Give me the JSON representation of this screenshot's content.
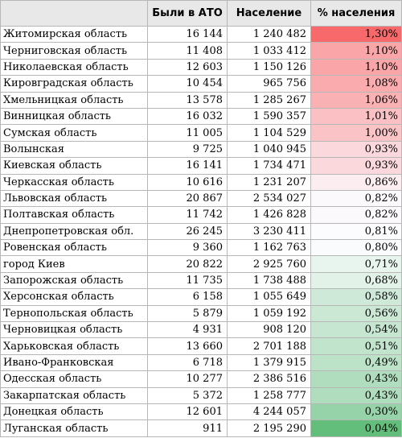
{
  "table": {
    "headers": [
      "",
      "Были в АТО",
      "Население",
      "% населения"
    ],
    "rows": [
      {
        "region": "Житомирская область",
        "ato": "16 144",
        "population": "1 240 482",
        "percent": "1,30%",
        "percent_value": 1.3
      },
      {
        "region": "Черниговская область",
        "ato": "11 408",
        "population": "1 033 412",
        "percent": "1,10%",
        "percent_value": 1.1
      },
      {
        "region": "Николаевская область",
        "ato": "12 603",
        "population": "1 150 126",
        "percent": "1,10%",
        "percent_value": 1.1
      },
      {
        "region": "Кировградская область",
        "ato": "10 454",
        "population": "965 756",
        "percent": "1,08%",
        "percent_value": 1.08
      },
      {
        "region": "Хмельницкая область",
        "ato": "13 578",
        "population": "1 285 267",
        "percent": "1,06%",
        "percent_value": 1.06
      },
      {
        "region": "Винницкая область",
        "ato": "16 032",
        "population": "1 590 357",
        "percent": "1,01%",
        "percent_value": 1.01
      },
      {
        "region": "Сумская область",
        "ato": "11 005",
        "population": "1 104 529",
        "percent": "1,00%",
        "percent_value": 1.0
      },
      {
        "region": "Волынская",
        "ato": "9 725",
        "population": "1 040 945",
        "percent": "0,93%",
        "percent_value": 0.93
      },
      {
        "region": "Киевская область",
        "ato": "16 141",
        "population": "1 734 471",
        "percent": "0,93%",
        "percent_value": 0.93
      },
      {
        "region": "Черкасская область",
        "ato": "10 616",
        "population": "1 231 207",
        "percent": "0,86%",
        "percent_value": 0.86
      },
      {
        "region": "Львовская область",
        "ato": "20 867",
        "population": "2 534 027",
        "percent": "0,82%",
        "percent_value": 0.82
      },
      {
        "region": "Полтавская область",
        "ato": "11 742",
        "population": "1 426 828",
        "percent": "0,82%",
        "percent_value": 0.82
      },
      {
        "region": "Днепропетровская обл.",
        "ato": "26 245",
        "population": "3 230 411",
        "percent": "0,81%",
        "percent_value": 0.81
      },
      {
        "region": "Ровенская область",
        "ato": "9 360",
        "population": "1 162 763",
        "percent": "0,80%",
        "percent_value": 0.8
      },
      {
        "region": "город Киев",
        "ato": "20 822",
        "population": "2 925 760",
        "percent": "0,71%",
        "percent_value": 0.71
      },
      {
        "region": "Запорожская область",
        "ato": "11 735",
        "population": "1 738 488",
        "percent": "0,68%",
        "percent_value": 0.68
      },
      {
        "region": "Херсонская область",
        "ato": "6 158",
        "population": "1 055 649",
        "percent": "0,58%",
        "percent_value": 0.58
      },
      {
        "region": "Тернопольская область",
        "ato": "5 879",
        "population": "1 059 192",
        "percent": "0,56%",
        "percent_value": 0.56
      },
      {
        "region": "Черновицкая область",
        "ato": "4 931",
        "population": "908 120",
        "percent": "0,54%",
        "percent_value": 0.54
      },
      {
        "region": "Харьковская область",
        "ato": "13 660",
        "population": "2 701 188",
        "percent": "0,51%",
        "percent_value": 0.51
      },
      {
        "region": "Ивано-Франковская",
        "ato": "6 718",
        "population": "1 379 915",
        "percent": "0,49%",
        "percent_value": 0.49
      },
      {
        "region": "Одесская область",
        "ato": "10 277",
        "population": "2 386 516",
        "percent": "0,43%",
        "percent_value": 0.43
      },
      {
        "region": "Закарпатская область",
        "ato": "5 372",
        "population": "1 258 777",
        "percent": "0,43%",
        "percent_value": 0.43
      },
      {
        "region": "Донецкая область",
        "ato": "12 601",
        "population": "4 244 057",
        "percent": "0,30%",
        "percent_value": 0.3
      },
      {
        "region": "Луганская область",
        "ato": "911",
        "population": "2 195 290",
        "percent": "0,04%",
        "percent_value": 0.04
      }
    ]
  },
  "color_scale": {
    "high": "#f8696b",
    "mid": "#fcfcff",
    "low": "#63be7b"
  }
}
